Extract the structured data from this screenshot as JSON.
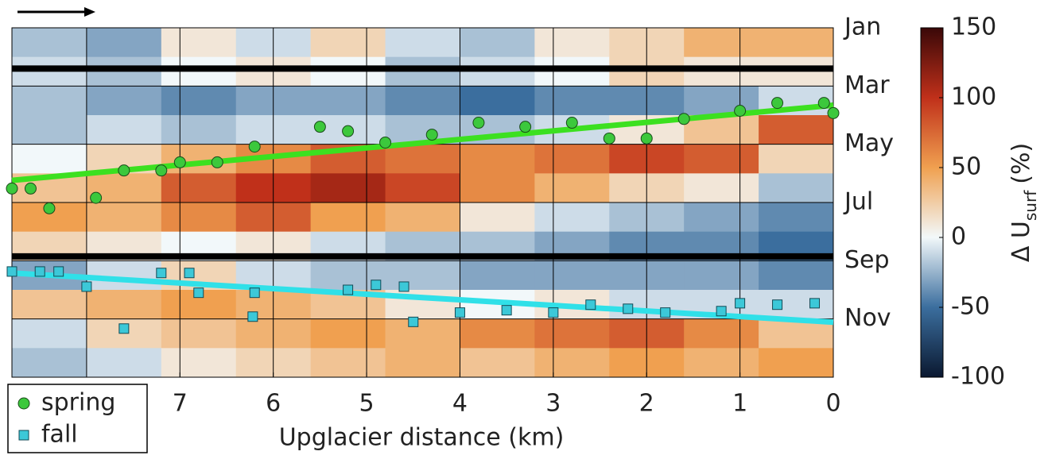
{
  "chart_data": {
    "type": "heatmap",
    "xlabel": "Upglacier distance (km)",
    "xlim": [
      8.8,
      0
    ],
    "xticks": [
      7,
      6,
      5,
      4,
      3,
      2,
      1,
      0
    ],
    "xgrid": [
      8,
      7,
      6,
      5,
      4,
      3,
      2,
      1
    ],
    "ylim": [
      0,
      12
    ],
    "yticks": [
      {
        "value": 0,
        "label": "Jan"
      },
      {
        "value": 2,
        "label": "Mar"
      },
      {
        "value": 4,
        "label": "May"
      },
      {
        "value": 6,
        "label": "Jul"
      },
      {
        "value": 8,
        "label": "Sep"
      },
      {
        "value": 10,
        "label": "Nov"
      }
    ],
    "gaps": [
      1.4,
      7.85
    ],
    "xbins": [
      8.8,
      8.0,
      7.2,
      6.4,
      5.6,
      4.8,
      4.0,
      3.2,
      2.4,
      1.6,
      0.8,
      0
    ],
    "ybins": [
      0,
      1,
      2,
      3,
      4,
      5,
      6,
      7,
      8,
      9,
      10,
      11,
      12
    ],
    "z": [
      [
        -20,
        -30,
        10,
        -10,
        20,
        -10,
        -20,
        10,
        20,
        40,
        40
      ],
      [
        -10,
        -20,
        0,
        10,
        0,
        -20,
        -10,
        0,
        20,
        10,
        10
      ],
      [
        -20,
        -30,
        -40,
        -30,
        -30,
        -40,
        -50,
        -40,
        -40,
        -30,
        -10
      ],
      [
        -20,
        -10,
        -20,
        -10,
        -10,
        -20,
        -20,
        -10,
        10,
        30,
        80
      ],
      [
        0,
        20,
        40,
        60,
        80,
        70,
        60,
        70,
        90,
        80,
        20
      ],
      [
        30,
        40,
        80,
        100,
        110,
        90,
        60,
        40,
        20,
        10,
        -20
      ],
      [
        50,
        40,
        60,
        80,
        50,
        40,
        10,
        -10,
        -20,
        -30,
        -40
      ],
      [
        20,
        10,
        0,
        10,
        -10,
        -20,
        -20,
        -30,
        -40,
        -40,
        -50
      ],
      [
        -30,
        -10,
        20,
        -10,
        -20,
        -20,
        -30,
        -30,
        -30,
        -30,
        -40
      ],
      [
        30,
        40,
        50,
        40,
        30,
        10,
        0,
        10,
        -10,
        -10,
        -10
      ],
      [
        -10,
        20,
        30,
        40,
        50,
        40,
        60,
        70,
        80,
        60,
        30
      ],
      [
        -20,
        -10,
        10,
        20,
        30,
        40,
        30,
        40,
        50,
        40,
        50
      ]
    ],
    "clim": [
      -100,
      150
    ],
    "colormap": [
      "#0a1830",
      "#3b6e9e",
      "#f2f8fa",
      "#f0a050",
      "#c0301a",
      "#3a0808"
    ],
    "colorbar_ticks": [
      -100,
      -50,
      0,
      50,
      100,
      150
    ],
    "colorbar_label": "Δ U",
    "colorbar_label_sub": "surf",
    "colorbar_unit": "(%)",
    "series": [
      {
        "name": "spring",
        "marker": "circle",
        "color": "#3cc83c",
        "x": [
          8.8,
          8.6,
          8.4,
          7.9,
          7.6,
          7.2,
          7.0,
          6.6,
          6.2,
          5.5,
          5.2,
          4.8,
          4.3,
          3.8,
          3.3,
          2.8,
          2.4,
          2.0,
          1.6,
          1.0,
          0.6,
          0.1,
          0.0
        ],
        "values": [
          5.52,
          5.52,
          6.2,
          5.84,
          4.9,
          4.9,
          4.62,
          4.62,
          4.08,
          3.4,
          3.55,
          3.94,
          3.67,
          3.26,
          3.4,
          3.26,
          3.8,
          3.8,
          3.13,
          2.85,
          2.58,
          2.58,
          2.93
        ],
        "fit_color": "#3ce020",
        "fit_x": [
          8.8,
          0
        ],
        "fit_values": [
          5.24,
          2.66
        ]
      },
      {
        "name": "fall",
        "marker": "square",
        "color": "#3cc8d8",
        "x": [
          8.8,
          8.5,
          8.3,
          8.0,
          7.6,
          7.2,
          6.9,
          6.8,
          6.2,
          6.22,
          5.2,
          4.9,
          4.6,
          4.5,
          4.0,
          3.5,
          3.0,
          2.6,
          2.2,
          1.8,
          1.2,
          1.0,
          0.6,
          0.2
        ],
        "values": [
          8.37,
          8.37,
          8.37,
          8.89,
          10.33,
          8.42,
          8.42,
          9.1,
          9.1,
          9.92,
          9.0,
          8.83,
          8.89,
          10.1,
          9.78,
          9.7,
          9.78,
          9.51,
          9.65,
          9.78,
          9.73,
          9.46,
          9.51,
          9.46
        ],
        "fit_color": "#30e0e8",
        "fit_x": [
          8.8,
          0
        ],
        "fit_values": [
          8.42,
          10.11
        ]
      }
    ]
  }
}
